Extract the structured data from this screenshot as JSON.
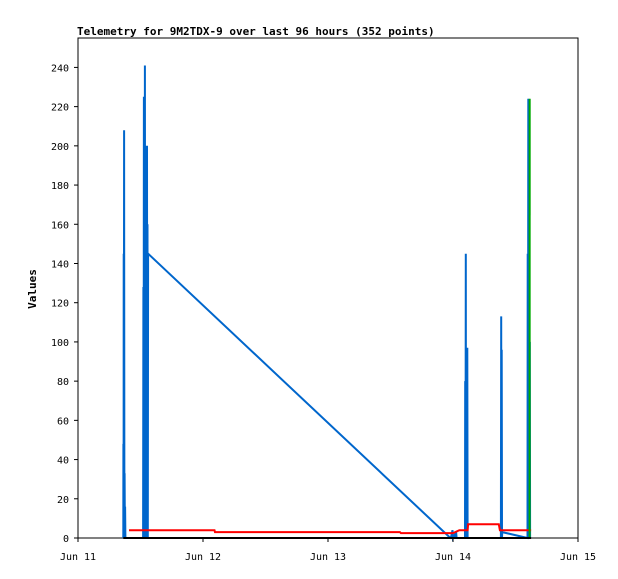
{
  "chart_data": {
    "type": "line",
    "title": "Telemetry for 9M2TDX-9 over last 96 hours (352 points)",
    "xlabel": "",
    "ylabel": "Values",
    "x_ticks": [
      "Jun 11",
      "Jun 12",
      "Jun 13",
      "Jun 14",
      "Jun 15"
    ],
    "x_range": [
      "Jun 11 00:00",
      "Jun 15 00:00"
    ],
    "y_ticks": [
      0,
      20,
      40,
      60,
      80,
      100,
      120,
      140,
      160,
      180,
      200,
      220,
      240
    ],
    "ylim": [
      0,
      255
    ],
    "grid": false,
    "legend": "none",
    "colors": {
      "series_blue": "#0066cc",
      "series_red": "#ff0000",
      "series_green": "#00aa00",
      "axis": "#000000"
    },
    "series": [
      {
        "color": "#0066cc",
        "x_hours": [
          8.7,
          8.72,
          8.76,
          8.78,
          8.8,
          8.85,
          8.9,
          8.95,
          9.0,
          9.05,
          9.1,
          12.5,
          12.55,
          12.6,
          12.65,
          12.7,
          12.75,
          12.8,
          12.85,
          12.9,
          12.95,
          13.0,
          13.05,
          13.1,
          13.15,
          13.2,
          13.25,
          13.3,
          13.35,
          13.4,
          13.45,
          71.5,
          71.6,
          71.9,
          72.0,
          72.4,
          72.5,
          72.6,
          72.7,
          74.3,
          74.35,
          74.4,
          74.45,
          74.5,
          74.55,
          74.6,
          74.65,
          74.7,
          74.75,
          74.8,
          81.2,
          81.25,
          81.3,
          81.35,
          81.4,
          81.45,
          86.3,
          86.35,
          86.4,
          86.45,
          86.5,
          86.55,
          86.6,
          86.65,
          86.7,
          86.75,
          86.8
        ],
        "values": [
          0,
          48,
          0,
          145,
          0,
          208,
          0,
          33,
          0,
          16,
          0,
          0,
          128,
          0,
          225,
          0,
          208,
          0,
          241,
          0,
          200,
          0,
          170,
          0,
          150,
          0,
          200,
          0,
          160,
          0,
          145,
          0,
          0,
          4,
          0,
          2,
          0,
          3,
          0,
          0,
          80,
          0,
          145,
          0,
          97,
          0,
          50,
          0,
          97,
          0,
          0,
          113,
          0,
          96,
          0,
          3,
          0,
          145,
          0,
          224,
          0,
          160,
          0,
          140,
          0,
          100,
          0
        ]
      },
      {
        "color": "#ff0000",
        "x_hours": [
          9.8,
          26.2,
          26.3,
          61.8,
          62.0,
          72.0,
          73.2,
          74.8,
          74.9,
          80.8,
          81.0,
          87.0
        ],
        "values": [
          4,
          4,
          3,
          3,
          2.5,
          2.5,
          4,
          4,
          7,
          7,
          4,
          4
        ]
      },
      {
        "color": "#00aa00",
        "x_hours": [
          86.7,
          86.72
        ],
        "values": [
          0,
          224
        ]
      },
      {
        "color": "#000000",
        "x_hours": [
          8.7,
          87.0
        ],
        "values": [
          0,
          0
        ]
      }
    ]
  }
}
